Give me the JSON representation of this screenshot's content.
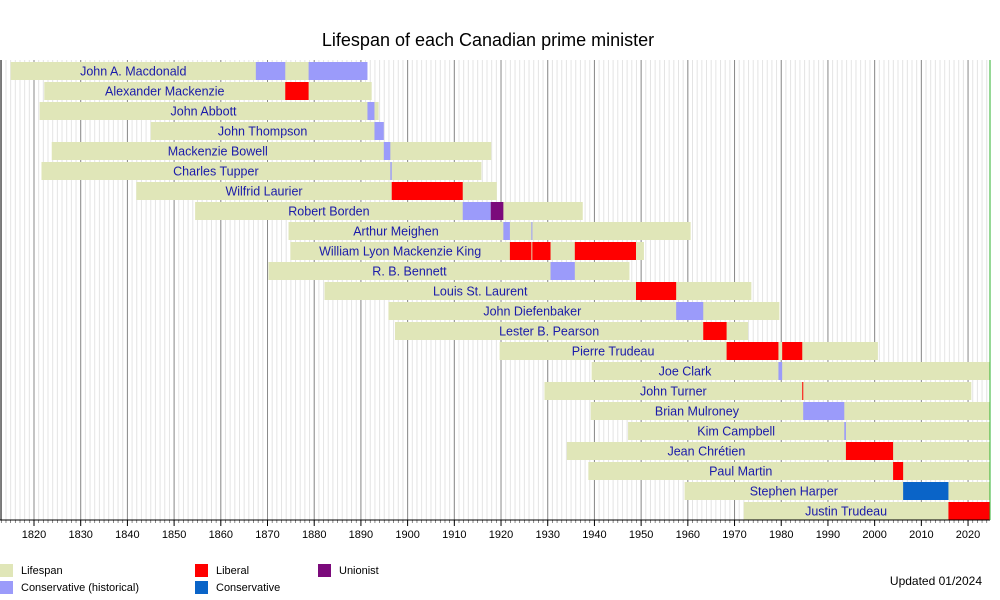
{
  "chart_data": {
    "type": "timeline",
    "title": "Lifespan of each Canadian prime minister",
    "annotation": "Updated 01/2024",
    "xlim": [
      1812.72,
      2024.7
    ],
    "xticks": [
      1820,
      1830,
      1840,
      1850,
      1860,
      1870,
      1880,
      1890,
      1900,
      1910,
      1920,
      1930,
      1940,
      1950,
      1960,
      1970,
      1980,
      1990,
      2000,
      2010,
      2020
    ],
    "grid": true,
    "minor_grid": true,
    "legend": [
      {
        "name": "Lifespan",
        "color": "#e0e6b8"
      },
      {
        "name": "Conservative (historical)",
        "color": "#9b9bfa"
      },
      {
        "name": "Liberal",
        "color": "#ff0000"
      },
      {
        "name": "Conservative",
        "color": "#0a64c8"
      },
      {
        "name": "Unionist",
        "color": "#7b0a7b"
      }
    ],
    "rows": [
      {
        "name": "John A. Macdonald",
        "lifespan": [
          1815,
          1891.4
        ],
        "terms": [
          {
            "party": "Conservative (historical)",
            "start": 1867.5,
            "end": 1873.8
          },
          {
            "party": "Conservative (historical)",
            "start": 1878.8,
            "end": 1891.4
          }
        ]
      },
      {
        "name": "Alexander Mackenzie",
        "lifespan": [
          1822.2,
          1892.3
        ],
        "terms": [
          {
            "party": "Liberal",
            "start": 1873.8,
            "end": 1878.8
          }
        ]
      },
      {
        "name": "John Abbott",
        "lifespan": [
          1821.2,
          1893.8
        ],
        "terms": [
          {
            "party": "Conservative (historical)",
            "start": 1891.4,
            "end": 1892.9
          }
        ]
      },
      {
        "name": "John Thompson",
        "lifespan": [
          1845,
          1894.9
        ],
        "terms": [
          {
            "party": "Conservative (historical)",
            "start": 1892.9,
            "end": 1894.9
          }
        ]
      },
      {
        "name": "Mackenzie Bowell",
        "lifespan": [
          1823.8,
          1917.9
        ],
        "terms": [
          {
            "party": "Conservative (historical)",
            "start": 1894.9,
            "end": 1896.3
          }
        ]
      },
      {
        "name": "Charles Tupper",
        "lifespan": [
          1821.6,
          1915.8
        ],
        "terms": [
          {
            "party": "Conservative (historical)",
            "start": 1896.3,
            "end": 1896.6
          }
        ]
      },
      {
        "name": "Wilfrid Laurier",
        "lifespan": [
          1841.9,
          1919.1
        ],
        "terms": [
          {
            "party": "Liberal",
            "start": 1896.6,
            "end": 1911.8
          }
        ]
      },
      {
        "name": "Robert Borden",
        "lifespan": [
          1854.5,
          1937.5
        ],
        "terms": [
          {
            "party": "Conservative (historical)",
            "start": 1911.8,
            "end": 1917.8
          },
          {
            "party": "Unionist",
            "start": 1917.8,
            "end": 1920.5
          }
        ]
      },
      {
        "name": "Arthur Meighen",
        "lifespan": [
          1874.5,
          1960.6
        ],
        "terms": [
          {
            "party": "Conservative (historical)",
            "start": 1920.5,
            "end": 1921.9
          },
          {
            "party": "Conservative (historical)",
            "start": 1926.5,
            "end": 1926.7
          }
        ]
      },
      {
        "name": "William Lyon Mackenzie King",
        "lifespan": [
          1874.9,
          1950.6
        ],
        "terms": [
          {
            "party": "Liberal",
            "start": 1921.9,
            "end": 1926.5
          },
          {
            "party": "Liberal",
            "start": 1926.7,
            "end": 1930.6
          },
          {
            "party": "Liberal",
            "start": 1935.8,
            "end": 1948.9
          }
        ]
      },
      {
        "name": "R. B. Bennett",
        "lifespan": [
          1870.2,
          1947.5
        ],
        "terms": [
          {
            "party": "Conservative (historical)",
            "start": 1930.6,
            "end": 1935.8
          }
        ]
      },
      {
        "name": "Louis St. Laurent",
        "lifespan": [
          1882.2,
          1973.6
        ],
        "terms": [
          {
            "party": "Liberal",
            "start": 1948.9,
            "end": 1957.5
          }
        ]
      },
      {
        "name": "John Diefenbaker",
        "lifespan": [
          1895.9,
          1979.6
        ],
        "terms": [
          {
            "party": "Conservative (historical)",
            "start": 1957.5,
            "end": 1963.3
          }
        ]
      },
      {
        "name": "Lester B. Pearson",
        "lifespan": [
          1897.3,
          1972.9
        ],
        "terms": [
          {
            "party": "Liberal",
            "start": 1963.3,
            "end": 1968.3
          }
        ]
      },
      {
        "name": "Pierre Trudeau",
        "lifespan": [
          1919.7,
          2000.7
        ],
        "terms": [
          {
            "party": "Liberal",
            "start": 1968.3,
            "end": 1979.4
          },
          {
            "party": "Liberal",
            "start": 1980.2,
            "end": 1984.5
          }
        ]
      },
      {
        "name": "Joe Clark",
        "lifespan": [
          1939.4,
          2024.7
        ],
        "terms": [
          {
            "party": "Conservative (historical)",
            "start": 1979.4,
            "end": 1980.2
          }
        ]
      },
      {
        "name": "John Turner",
        "lifespan": [
          1929.3,
          2020.7
        ],
        "terms": [
          {
            "party": "Liberal",
            "start": 1984.5,
            "end": 1984.7
          }
        ]
      },
      {
        "name": "Brian Mulroney",
        "lifespan": [
          1939.2,
          2024.7
        ],
        "terms": [
          {
            "party": "Conservative (historical)",
            "start": 1984.7,
            "end": 1993.5
          }
        ]
      },
      {
        "name": "Kim Campbell",
        "lifespan": [
          1947.2,
          2024.7
        ],
        "terms": [
          {
            "party": "Conservative (historical)",
            "start": 1993.5,
            "end": 1993.85
          }
        ]
      },
      {
        "name": "Jean Chrétien",
        "lifespan": [
          1934.1,
          2024.7
        ],
        "terms": [
          {
            "party": "Liberal",
            "start": 1993.85,
            "end": 2003.95
          }
        ]
      },
      {
        "name": "Paul Martin",
        "lifespan": [
          1938.7,
          2024.7
        ],
        "terms": [
          {
            "party": "Liberal",
            "start": 2003.95,
            "end": 2006.1
          }
        ]
      },
      {
        "name": "Stephen Harper",
        "lifespan": [
          1959.3,
          2024.7
        ],
        "terms": [
          {
            "party": "Conservative",
            "start": 2006.1,
            "end": 2015.8
          }
        ]
      },
      {
        "name": "Justin Trudeau",
        "lifespan": [
          1971.97,
          2024.7
        ],
        "terms": [
          {
            "party": "Liberal",
            "start": 2015.8,
            "end": 2024.7
          }
        ]
      }
    ]
  }
}
